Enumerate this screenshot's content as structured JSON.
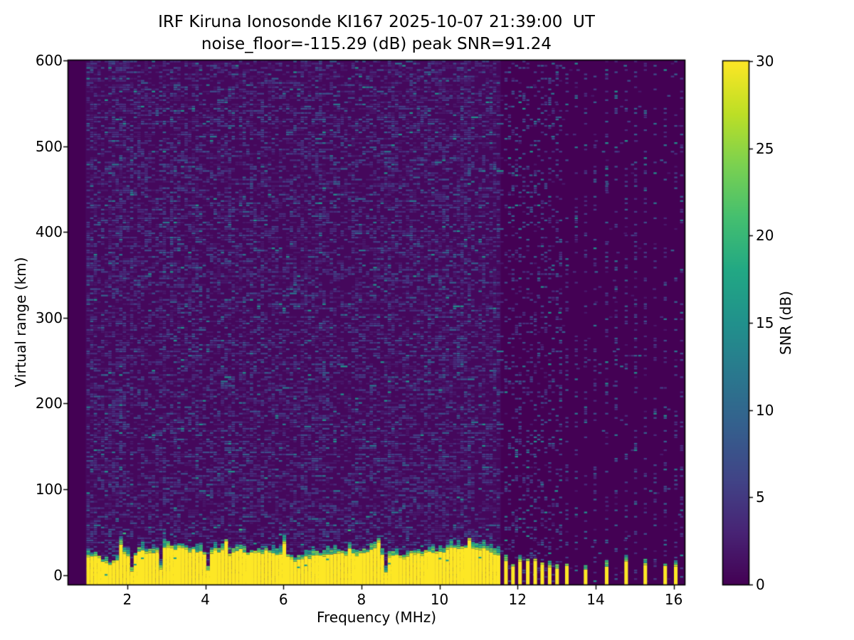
{
  "figure": {
    "title": "IRF Kiruna Ionosonde KI167 2025-10-07 21:39:00  UT",
    "subtitle": "noise_floor=-115.29 (dB) peak SNR=91.24"
  },
  "chart_data": {
    "type": "heatmap",
    "title": "IRF Kiruna Ionosonde KI167 2025-10-07 21:39:00  UT",
    "subtitle": "noise_floor=-115.29 (dB) peak SNR=91.24",
    "xlabel": "Frequency (MHz)",
    "ylabel": "Virtual range (km)",
    "colorbar_label": "SNR (dB)",
    "xlim": [
      0.49,
      16.28
    ],
    "ylim": [
      -11,
      600
    ],
    "clim": [
      0,
      30
    ],
    "xticks": [
      2,
      4,
      6,
      8,
      10,
      12,
      14,
      16
    ],
    "yticks": [
      0,
      100,
      200,
      300,
      400,
      500,
      600
    ],
    "cticks": [
      0,
      5,
      10,
      15,
      20,
      25,
      30
    ],
    "grid": false,
    "colormap": {
      "name": "viridis",
      "stops": [
        "#440154",
        "#482475",
        "#414487",
        "#355f8d",
        "#2a788e",
        "#21918c",
        "#22a884",
        "#44bf70",
        "#7ad151",
        "#bddf26",
        "#fde725"
      ]
    },
    "colors": {
      "background_dark": "#440154",
      "background_sweep": "#45085c",
      "clutter_yellow": "#fde725",
      "axis": "#000000",
      "figure_bg": "#ffffff",
      "noise_palette": [
        "#48186a",
        "#472d7b",
        "#433e85",
        "#3d4e8a",
        "#35608d",
        "#2a768e",
        "#21918c"
      ],
      "noise_weights": [
        0.3,
        0.24,
        0.18,
        0.13,
        0.09,
        0.04,
        0.02
      ],
      "cap_palette": [
        "#b5de2b",
        "#6ece58",
        "#35b779",
        "#1f9e89",
        "#26828e",
        "#31688e"
      ]
    },
    "features": {
      "seed": 167,
      "signal_fmin_mhz": 0.93,
      "sweep_fmax_mhz": 11.58,
      "noise_speckle_density": 0.46,
      "ground_clutter_top_km_min": 12,
      "ground_clutter_top_km_max": 32,
      "ground_clutter_base_km": -11,
      "tone_speckle_density": 0.2,
      "off_tone_speckle_density": 0.012,
      "tones": [
        {
          "f": 11.7,
          "y": 1
        },
        {
          "f": 11.79,
          "y": 0
        },
        {
          "f": 11.88,
          "y": 1
        },
        {
          "f": 11.97,
          "y": 0
        },
        {
          "f": 12.06,
          "y": 1
        },
        {
          "f": 12.16,
          "y": 0
        },
        {
          "f": 12.26,
          "y": 1
        },
        {
          "f": 12.35,
          "y": 0
        },
        {
          "f": 12.45,
          "y": 1
        },
        {
          "f": 12.54,
          "y": 0
        },
        {
          "f": 12.63,
          "y": 1
        },
        {
          "f": 12.72,
          "y": 0
        },
        {
          "f": 12.82,
          "y": 1
        },
        {
          "f": 12.91,
          "y": 0
        },
        {
          "f": 13.01,
          "y": 1
        },
        {
          "f": 13.1,
          "y": 0
        },
        {
          "f": 13.26,
          "y": 1
        },
        {
          "f": 13.5,
          "y": 0
        },
        {
          "f": 13.74,
          "y": 1
        },
        {
          "f": 13.98,
          "y": 0
        },
        {
          "f": 14.28,
          "y": 1
        },
        {
          "f": 14.52,
          "y": 0
        },
        {
          "f": 14.78,
          "y": 1
        },
        {
          "f": 15.02,
          "y": 0
        },
        {
          "f": 15.27,
          "y": 1
        },
        {
          "f": 15.52,
          "y": 0
        },
        {
          "f": 15.78,
          "y": 1
        },
        {
          "f": 16.05,
          "y": 1
        },
        {
          "f": 16.2,
          "y": 0
        }
      ]
    }
  }
}
